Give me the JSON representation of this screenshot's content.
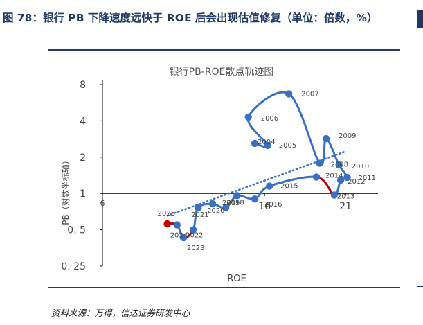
{
  "figure": {
    "title": "图 78：银行 PB 下降速度远快于 ROE 后会出现估值修复（单位：倍数，%）",
    "source": "资料来源：万得，信达证券研发中心"
  },
  "chart_data": {
    "type": "scatter",
    "title": "银行PB-ROE散点轨迹图",
    "xlabel": "ROE",
    "ylabel": "PB（对数坐标轴）",
    "xscale": "linear",
    "yscale": "log2",
    "xlim": [
      6,
      23
    ],
    "ylim": [
      0.25,
      8
    ],
    "x_ticks": [
      {
        "value": 6,
        "label": "6"
      },
      {
        "value": 16,
        "label": "16"
      },
      {
        "value": 21,
        "label": "21"
      }
    ],
    "y_ticks": [
      {
        "value": 0.25,
        "label": "0. 25"
      },
      {
        "value": 0.5,
        "label": "0. 5"
      },
      {
        "value": 1,
        "label": "1"
      },
      {
        "value": 2,
        "label": "2"
      },
      {
        "value": 4,
        "label": "4"
      },
      {
        "value": 8,
        "label": "8"
      }
    ],
    "grid": false,
    "legend": "none",
    "series": [
      {
        "color": "#3a70c4",
        "points": [
          {
            "year": "2004",
            "x": 15.4,
            "y": 2.6
          },
          {
            "year": "2005",
            "x": 16.2,
            "y": 2.5
          },
          {
            "year": "2006",
            "x": 15.0,
            "y": 4.3
          },
          {
            "year": "2007",
            "x": 17.5,
            "y": 6.7
          },
          {
            "year": "2008",
            "x": 19.4,
            "y": 1.78
          },
          {
            "year": "2009",
            "x": 19.8,
            "y": 2.85
          },
          {
            "year": "2010",
            "x": 20.6,
            "y": 1.72
          },
          {
            "year": "2011",
            "x": 21.1,
            "y": 1.36
          },
          {
            "year": "2012",
            "x": 20.7,
            "y": 1.29
          },
          {
            "year": "2013",
            "x": 20.3,
            "y": 0.97
          },
          {
            "year": "2014",
            "x": 19.2,
            "y": 1.37
          },
          {
            "year": "2015",
            "x": 16.3,
            "y": 1.15
          },
          {
            "year": "2016",
            "x": 15.4,
            "y": 0.9
          },
          {
            "year": "2018",
            "x": 14.3,
            "y": 0.96
          },
          {
            "year": "2019",
            "x": 13.6,
            "y": 0.76
          },
          {
            "year": "2020",
            "x": 12.8,
            "y": 0.82
          },
          {
            "year": "2021",
            "x": 11.9,
            "y": 0.76
          },
          {
            "year": "2022",
            "x": 11.6,
            "y": 0.5
          },
          {
            "year": "2023",
            "x": 11.0,
            "y": 0.43
          },
          {
            "year": "2024",
            "x": 10.6,
            "y": 0.55
          },
          {
            "year": "2025",
            "x": 10.0,
            "y": 0.56
          }
        ]
      }
    ],
    "highlight_color": "#c00000",
    "highlighted_points": [
      "2025"
    ],
    "highlighted_segments": [
      [
        "2014",
        "2013"
      ],
      [
        "2023",
        "2022"
      ],
      [
        "2025",
        "2024"
      ]
    ],
    "trendline": {
      "style": "dotted",
      "color": "#3a70c4"
    }
  }
}
